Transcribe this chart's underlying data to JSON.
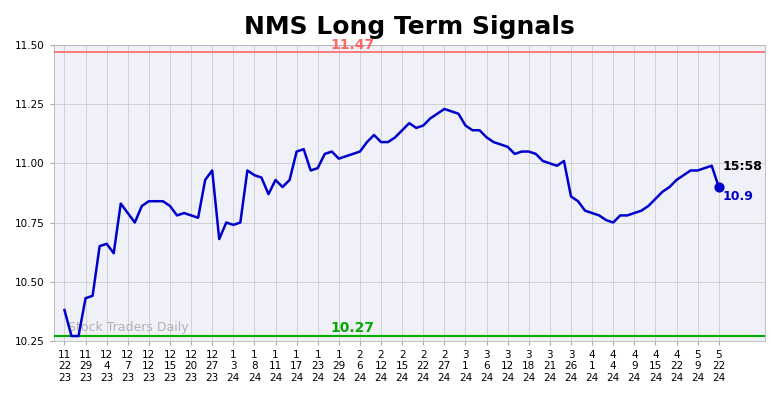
{
  "title": "NMS Long Term Signals",
  "title_fontsize": 18,
  "background_color": "#ffffff",
  "grid_color": "#cccccc",
  "line_color": "#0000cc",
  "line_width": 1.8,
  "upper_line_value": 11.47,
  "upper_line_color": "#ff6666",
  "lower_line_value": 10.27,
  "lower_line_color": "#00aa00",
  "watermark_text": "Stock Traders Daily",
  "watermark_color": "#aaaaaa",
  "last_label_time": "15:58",
  "last_label_value": 10.9,
  "last_dot_color": "#0000cc",
  "ylim": [
    10.25,
    11.5
  ],
  "yticks": [
    10.25,
    10.5,
    10.75,
    11.0,
    11.25,
    11.5
  ],
  "xtick_labels": [
    "11.22.23",
    "11.29.23",
    "12.4.23",
    "12.7.23",
    "12.12.23",
    "12.15.23",
    "12.20.23",
    "12.27.23",
    "1.3.24",
    "1.8.24",
    "1.11.24",
    "1.17.24",
    "1.23.24",
    "1.29.24",
    "2.6.24",
    "2.12.24",
    "2.15.24",
    "2.22.24",
    "2.27.24",
    "3.1.24",
    "3.6.24",
    "3.12.24",
    "3.18.24",
    "3.21.24",
    "3.26.24",
    "4.1.24",
    "4.4.24",
    "4.9.24",
    "4.15.24",
    "4.22.24",
    "5.9.24",
    "5.22.24"
  ],
  "y_values": [
    10.38,
    10.27,
    10.27,
    10.43,
    10.44,
    10.65,
    10.66,
    10.62,
    10.83,
    10.79,
    10.75,
    10.82,
    10.84,
    10.84,
    10.84,
    10.82,
    10.78,
    10.79,
    10.78,
    10.77,
    10.93,
    10.97,
    10.68,
    10.75,
    10.74,
    10.75,
    10.97,
    10.95,
    10.94,
    10.87,
    10.93,
    10.9,
    10.93,
    11.05,
    11.06,
    10.97,
    10.98,
    11.04,
    11.05,
    11.02,
    11.03,
    11.04,
    11.05,
    11.09,
    11.12,
    11.09,
    11.09,
    11.11,
    11.14,
    11.17,
    11.15,
    11.16,
    11.19,
    11.21,
    11.23,
    11.22,
    11.21,
    11.16,
    11.14,
    11.14,
    11.11,
    11.09,
    11.08,
    11.07,
    11.04,
    11.05,
    11.05,
    11.04,
    11.01,
    11.0,
    10.99,
    11.01,
    10.86,
    10.84,
    10.8,
    10.79,
    10.78,
    10.76,
    10.75,
    10.78,
    10.78,
    10.79,
    10.8,
    10.82,
    10.85,
    10.88,
    10.9,
    10.93,
    10.95,
    10.97,
    10.97,
    10.98,
    10.99,
    10.9
  ]
}
